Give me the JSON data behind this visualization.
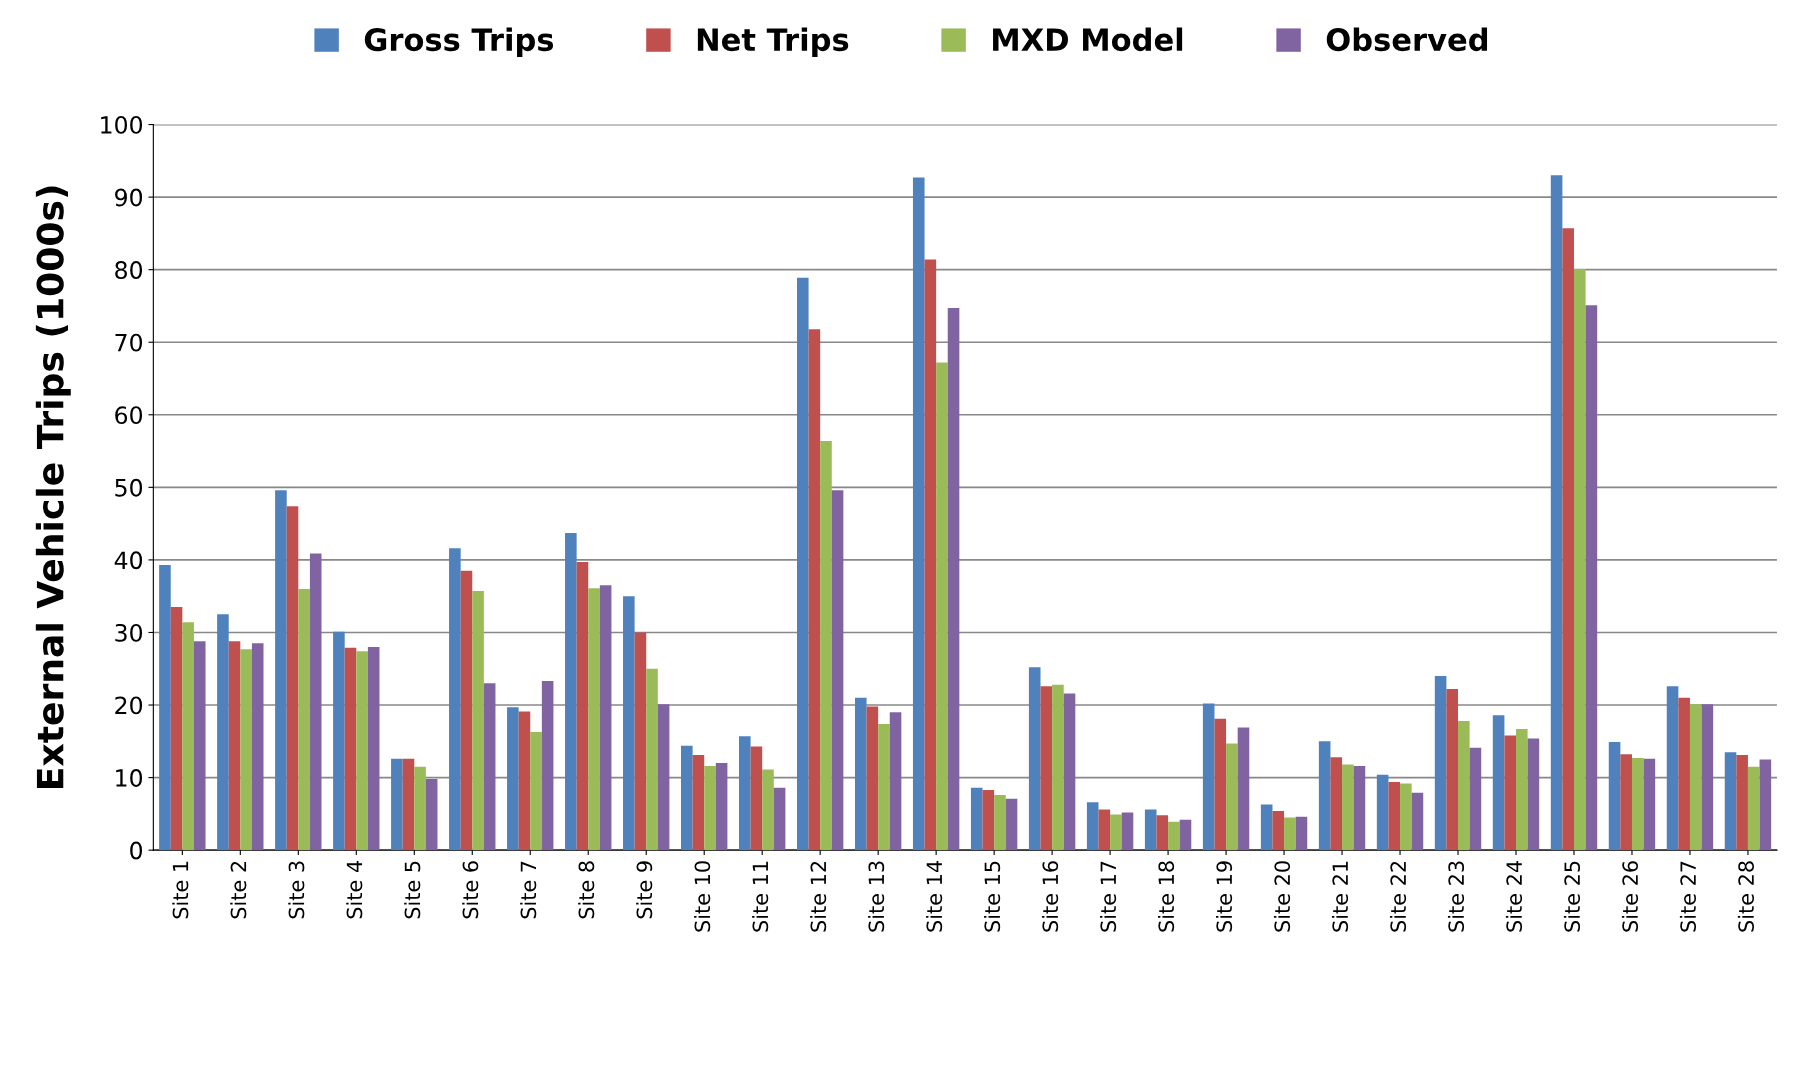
{
  "chart_data": {
    "type": "bar",
    "ylabel": "External Vehicle Trips (1000s)",
    "categories": [
      "Site 1",
      "Site 2",
      "Site 3",
      "Site 4",
      "Site 5",
      "Site 6",
      "Site 7",
      "Site 8",
      "Site 9",
      "Site 10",
      "Site 11",
      "Site 12",
      "Site 13",
      "Site 14",
      "Site 15",
      "Site 16",
      "Site 17",
      "Site 18",
      "Site 19",
      "Site 20",
      "Site 21",
      "Site 22",
      "Site 23",
      "Site 24",
      "Site 25",
      "Site 26",
      "Site 27",
      "Site 28"
    ],
    "series": [
      {
        "name": "Gross Trips",
        "color": "#4f81bd",
        "values": [
          39.3,
          32.5,
          49.6,
          30.1,
          12.6,
          41.6,
          19.7,
          43.7,
          35,
          14.4,
          15.7,
          78.9,
          21,
          92.7,
          8.6,
          25.2,
          6.6,
          5.6,
          20.2,
          6.3,
          15,
          10.4,
          24,
          18.6,
          93,
          14.9,
          22.6,
          13.5
        ]
      },
      {
        "name": "Net Trips",
        "color": "#c0504d",
        "values": [
          33.5,
          28.8,
          47.4,
          27.9,
          12.6,
          38.5,
          19.1,
          39.7,
          30,
          13.1,
          14.3,
          71.8,
          19.8,
          81.4,
          8.3,
          22.6,
          5.6,
          4.8,
          18.1,
          5.4,
          12.8,
          9.4,
          22.2,
          15.8,
          85.7,
          13.2,
          21,
          13.1
        ]
      },
      {
        "name": "MXD Model",
        "color": "#9bbb59",
        "values": [
          31.4,
          27.7,
          36,
          27.4,
          11.5,
          35.7,
          16.3,
          36.1,
          25,
          11.6,
          11.1,
          56.4,
          17.4,
          67.2,
          7.6,
          22.8,
          4.9,
          3.9,
          14.7,
          4.5,
          11.8,
          9.2,
          17.8,
          16.7,
          80.1,
          12.7,
          20.1,
          11.5
        ]
      },
      {
        "name": "Observed",
        "color": "#8064a2",
        "values": [
          28.8,
          28.5,
          40.9,
          28,
          9.8,
          23,
          23.3,
          36.5,
          20.1,
          12,
          8.6,
          49.6,
          19,
          74.7,
          7.1,
          21.6,
          5.2,
          4.2,
          16.9,
          4.6,
          11.6,
          7.9,
          14.1,
          15.4,
          75.1,
          12.6,
          20.1,
          12.5
        ]
      }
    ],
    "ylim": [
      0,
      100
    ],
    "yticks": [
      0,
      10,
      20,
      30,
      40,
      50,
      60,
      70,
      80,
      90,
      100
    ],
    "grid": "y",
    "legend": "top"
  }
}
